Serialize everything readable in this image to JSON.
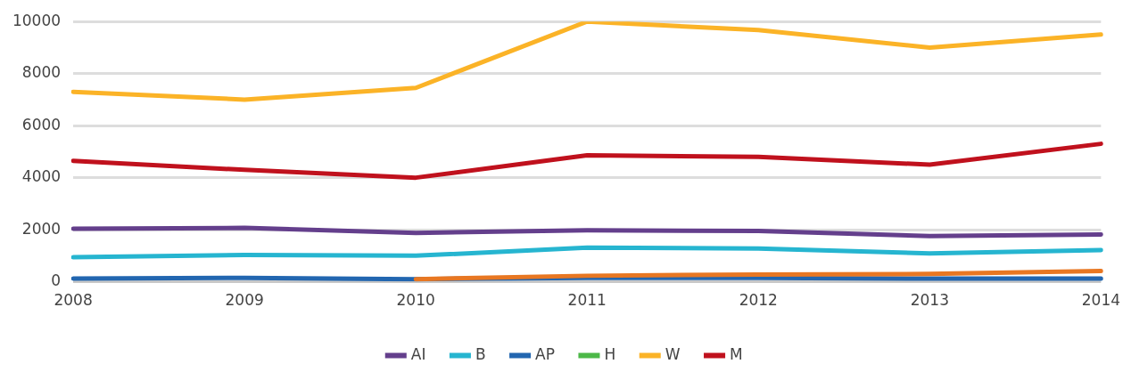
{
  "chart_data": {
    "type": "line",
    "categories": [
      "2008",
      "2009",
      "2010",
      "2011",
      "2012",
      "2013",
      "2014"
    ],
    "series": [
      {
        "name": "AI",
        "color": "#643f8c",
        "values": [
          2040,
          2070,
          1880,
          1980,
          1950,
          1760,
          1820
        ]
      },
      {
        "name": "B",
        "color": "#26b5d0",
        "values": [
          940,
          1030,
          1000,
          1310,
          1280,
          1090,
          1220
        ]
      },
      {
        "name": "AP",
        "color": "#2266b0",
        "values": [
          120,
          150,
          100,
          150,
          150,
          120,
          120
        ]
      },
      {
        "name": "H",
        "color": "#4cb848",
        "values": [
          null,
          null,
          null,
          null,
          null,
          null,
          null
        ]
      },
      {
        "name": "W",
        "color": "#fbb327",
        "values": [
          7300,
          7000,
          7450,
          10000,
          9670,
          9000,
          9500
        ]
      },
      {
        "name": "M",
        "color": "#c0111d",
        "values": [
          4650,
          4300,
          4000,
          4860,
          4800,
          4500,
          5300
        ]
      },
      {
        "color": "#e87722",
        "values": [
          null,
          null,
          100,
          230,
          280,
          300,
          410
        ]
      }
    ],
    "ylim": [
      0,
      10000
    ],
    "yticks": [
      0,
      2000,
      4000,
      6000,
      8000,
      10000
    ],
    "grid": "y",
    "legend": "bottom",
    "marker": "none",
    "line_style": "solid"
  }
}
